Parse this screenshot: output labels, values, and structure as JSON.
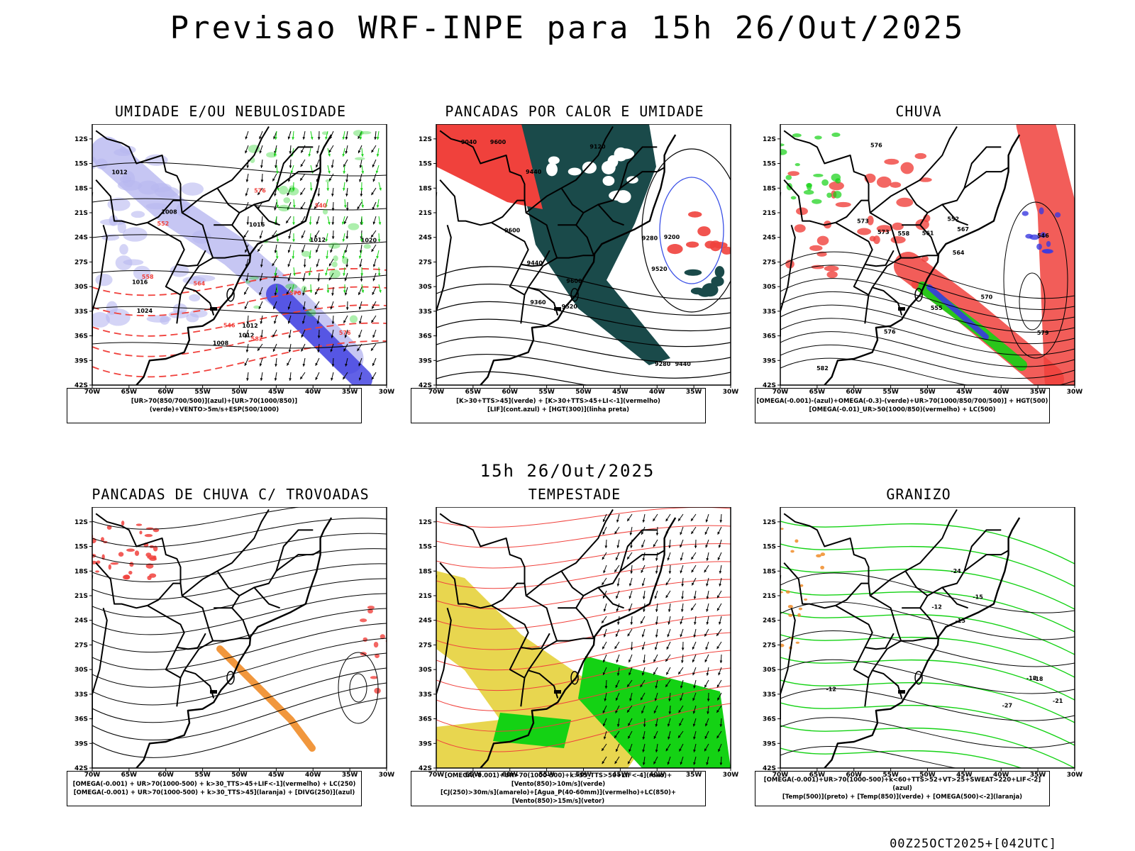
{
  "main_title": "Previsao WRF-INPE  para 15h 26/Out/2025",
  "mid_title": "15h 26/Out/2025",
  "footer": "00Z25OCT2025+[042UTC]",
  "axis": {
    "lat_labels": [
      "12S",
      "15S",
      "18S",
      "21S",
      "24S",
      "27S",
      "30S",
      "33S",
      "36S",
      "39S",
      "42S"
    ],
    "lon_labels": [
      "70W",
      "65W",
      "60W",
      "55W",
      "50W",
      "45W",
      "40W",
      "35W",
      "30W"
    ]
  },
  "panels": [
    {
      "title": "UMIDADE E/OU NEBULOSIDADE",
      "legend": [
        "[UR>70(850/700/500)](azul)+[UR>70(1000/850)](verde)+VENTO>5m/s+ESP(500/1000)"
      ],
      "contour_labels": [
        "1008",
        "1012",
        "1016",
        "1012",
        "1020",
        "1024",
        "1012",
        "1016",
        "1012",
        "1008"
      ],
      "red_labels": [
        "576",
        "570",
        "564",
        "558",
        "552",
        "546",
        "540",
        "576",
        "582"
      ]
    },
    {
      "title": "PANCADAS POR CALOR E UMIDADE",
      "legend": [
        "[K>30+TTS>45](verde) + [K>30+TTS>45+LI<-1](vermelho)",
        "[LIF](cont.azul) + [HGT(300)](linha preta)"
      ],
      "contour_labels": [
        "9600",
        "9600",
        "9600",
        "9520",
        "9440",
        "9440",
        "9520",
        "9440",
        "9360",
        "9280",
        "9200",
        "9120",
        "9040",
        "9280"
      ]
    },
    {
      "title": "CHUVA",
      "legend": [
        "[OMEGA(-0.001)-(azul)+OMEGA(-0.3)-(verde)+UR>70(1000/850/700/500)] + HGT(500)",
        "[OMEGA(-0.01)_UR>50(1000/850)(vermelho) + LC(500)"
      ],
      "contour_labels": [
        "582",
        "579",
        "576",
        "573",
        "570",
        "567",
        "564",
        "561",
        "558",
        "555",
        "552",
        "546",
        "573",
        "576"
      ]
    },
    {
      "title": "PANCADAS DE CHUVA C/ TROVOADAS",
      "legend": [
        "[OMEGA(-0.001) + UR>70(1000-500) + k>30_TTS>45+LIF<-1](vermelho) + LC(250)",
        "[OMEGA(-0.001) + UR>70(1000-500) + k>30_TTS>45](laranja) + [DIVG(250)](azul)"
      ]
    },
    {
      "title": "TEMPESTADE",
      "legend": [
        "[OMEGA(-0.001)+UR>70(1000-500)+k>35_TTS>50+LIF<-4](roxo)+[Vento(850)>10m/s](verde)",
        "[CJ(250)>30m/s](amarelo)+[Agua_P(40-60mm)](vermelho)+LC(850)+[Vento(850)>15m/s](vetor)"
      ]
    },
    {
      "title": "GRANIZO",
      "legend": [
        "[OMEGA(-0.001)+UR>70(1000-500)+k<60+TTS>52+VT>25+SWEAT>220+LIF<-2](azul)",
        "[Temp(500)](preto) + [Temp(850)](verde) + [OMEGA(500)<-2](laranja)"
      ],
      "contour_labels": [
        "-12",
        "-15",
        "-18",
        "-21",
        "-24",
        "-27",
        "-12",
        "-15",
        "-18"
      ]
    }
  ],
  "colors": {
    "blue_light": "#b8b8f0",
    "blue_dark": "#3a3ae0",
    "green": "#14d214",
    "red": "#f0413c",
    "teal": "#1a4a4a",
    "yellow": "#e6d23c",
    "orange": "#f08c28"
  }
}
